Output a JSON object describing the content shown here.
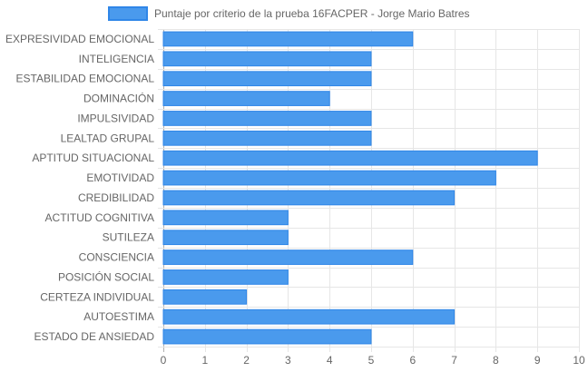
{
  "chart_data": {
    "type": "bar",
    "orientation": "horizontal",
    "categories": [
      "EXPRESIVIDAD EMOCIONAL",
      "INTELIGENCIA",
      "ESTABILIDAD EMOCIONAL",
      "DOMINACIÓN",
      "IMPULSIVIDAD",
      "LEALTAD GRUPAL",
      "APTITUD SITUACIONAL",
      "EMOTIVIDAD",
      "CREDIBILIDAD",
      "ACTITUD COGNITIVA",
      "SUTILEZA",
      "CONSCIENCIA",
      "POSICIÓN SOCIAL",
      "CERTEZA INDIVIDUAL",
      "AUTOESTIMA",
      "ESTADO DE ANSIEDAD"
    ],
    "series": [
      {
        "name": "Puntaje por criterio de la prueba 16FACPER - Jorge Mario Batres",
        "values": [
          6,
          5,
          5,
          4,
          5,
          5,
          9,
          8,
          7,
          3,
          3,
          6,
          3,
          2,
          7,
          5
        ]
      }
    ],
    "xlim": [
      0,
      10
    ],
    "xticks": [
      0,
      1,
      2,
      3,
      4,
      5,
      6,
      7,
      8,
      9,
      10
    ],
    "grid": true,
    "legend_position": "top",
    "colors": {
      "bar_fill": "#4a9aed",
      "bar_stroke": "#2f86e8",
      "grid": "#e6e6e6",
      "text": "#666666"
    }
  }
}
